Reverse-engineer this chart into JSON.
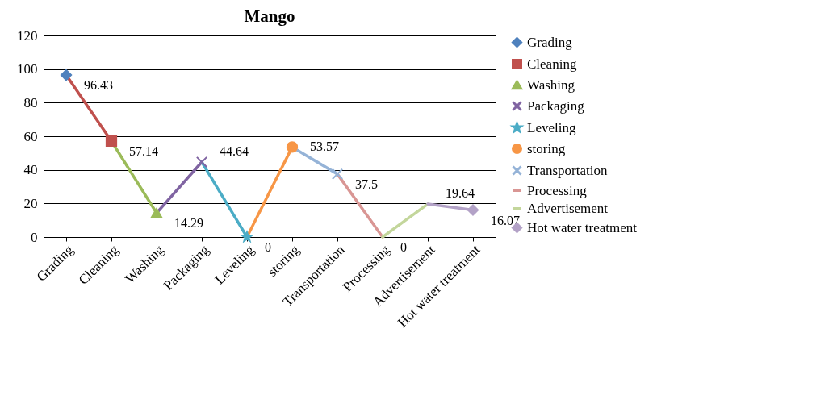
{
  "chart_data": {
    "type": "line",
    "title": "Mango",
    "categories": [
      "Grading",
      "Cleaning",
      "Washing",
      "Packaging",
      "Leveling",
      "storing",
      "Transportation",
      "Processing",
      "Advertisement",
      "Hot water treatment"
    ],
    "series": [
      {
        "name": "Grading",
        "color": "#4f81bd",
        "marker": "diamond",
        "values": [
          96.43,
          null,
          null,
          null,
          null,
          null,
          null,
          null,
          null,
          null
        ],
        "value_labels": [
          "96.43",
          null,
          null,
          null,
          null,
          null,
          null,
          null,
          null,
          null
        ]
      },
      {
        "name": "Cleaning",
        "color": "#c0504d",
        "marker": "square",
        "values": [
          96.43,
          57.14,
          null,
          null,
          null,
          null,
          null,
          null,
          null,
          null
        ],
        "value_labels": [
          null,
          "57.14",
          null,
          null,
          null,
          null,
          null,
          null,
          null,
          null
        ]
      },
      {
        "name": "Washing",
        "color": "#9bbb59",
        "marker": "triangle",
        "values": [
          null,
          57.14,
          14.29,
          null,
          null,
          null,
          null,
          null,
          null,
          null
        ],
        "value_labels": [
          null,
          null,
          "14.29",
          null,
          null,
          null,
          null,
          null,
          null,
          null
        ]
      },
      {
        "name": "Packaging",
        "color": "#8064a2",
        "marker": "cross",
        "values": [
          null,
          null,
          14.29,
          44.64,
          null,
          null,
          null,
          null,
          null,
          null
        ],
        "value_labels": [
          null,
          null,
          null,
          "44.64",
          null,
          null,
          null,
          null,
          null,
          null
        ]
      },
      {
        "name": "Leveling",
        "color": "#4bacc6",
        "marker": "star",
        "values": [
          null,
          null,
          null,
          44.64,
          0,
          null,
          null,
          null,
          null,
          null
        ],
        "value_labels": [
          null,
          null,
          null,
          null,
          "0",
          null,
          null,
          null,
          null,
          null
        ]
      },
      {
        "name": "storing",
        "color": "#f79646",
        "marker": "circle",
        "values": [
          null,
          null,
          null,
          null,
          0,
          53.57,
          null,
          null,
          null,
          null
        ],
        "value_labels": [
          null,
          null,
          null,
          null,
          null,
          "53.57",
          null,
          null,
          null,
          null
        ]
      },
      {
        "name": "Transportation",
        "color": "#95b3d7",
        "marker": "cross",
        "values": [
          null,
          null,
          null,
          null,
          null,
          53.57,
          37.5,
          null,
          null,
          null
        ],
        "value_labels": [
          null,
          null,
          null,
          null,
          null,
          null,
          "37.5",
          null,
          null,
          null
        ]
      },
      {
        "name": "Processing",
        "color": "#d99694",
        "marker": "none",
        "values": [
          null,
          null,
          null,
          null,
          null,
          null,
          37.5,
          0,
          null,
          null
        ],
        "value_labels": [
          null,
          null,
          null,
          null,
          null,
          null,
          null,
          "0",
          null,
          null
        ]
      },
      {
        "name": "Advertisement",
        "color": "#c3d69b",
        "marker": "none",
        "values": [
          null,
          null,
          null,
          null,
          null,
          null,
          null,
          0,
          19.64,
          null
        ],
        "value_labels": [
          null,
          null,
          null,
          null,
          null,
          null,
          null,
          null,
          "19.64",
          null
        ]
      },
      {
        "name": "Hot water treatment",
        "color": "#b3a2c7",
        "marker": "diamond",
        "values": [
          null,
          null,
          null,
          null,
          null,
          null,
          null,
          null,
          19.64,
          16.07
        ],
        "value_labels": [
          null,
          null,
          null,
          null,
          null,
          null,
          null,
          null,
          null,
          "16.07"
        ]
      }
    ],
    "ylim": [
      0,
      120
    ],
    "yticks": [
      0,
      20,
      40,
      60,
      80,
      100,
      120
    ],
    "grid": "y",
    "legend": "right",
    "line_style": "solid"
  }
}
